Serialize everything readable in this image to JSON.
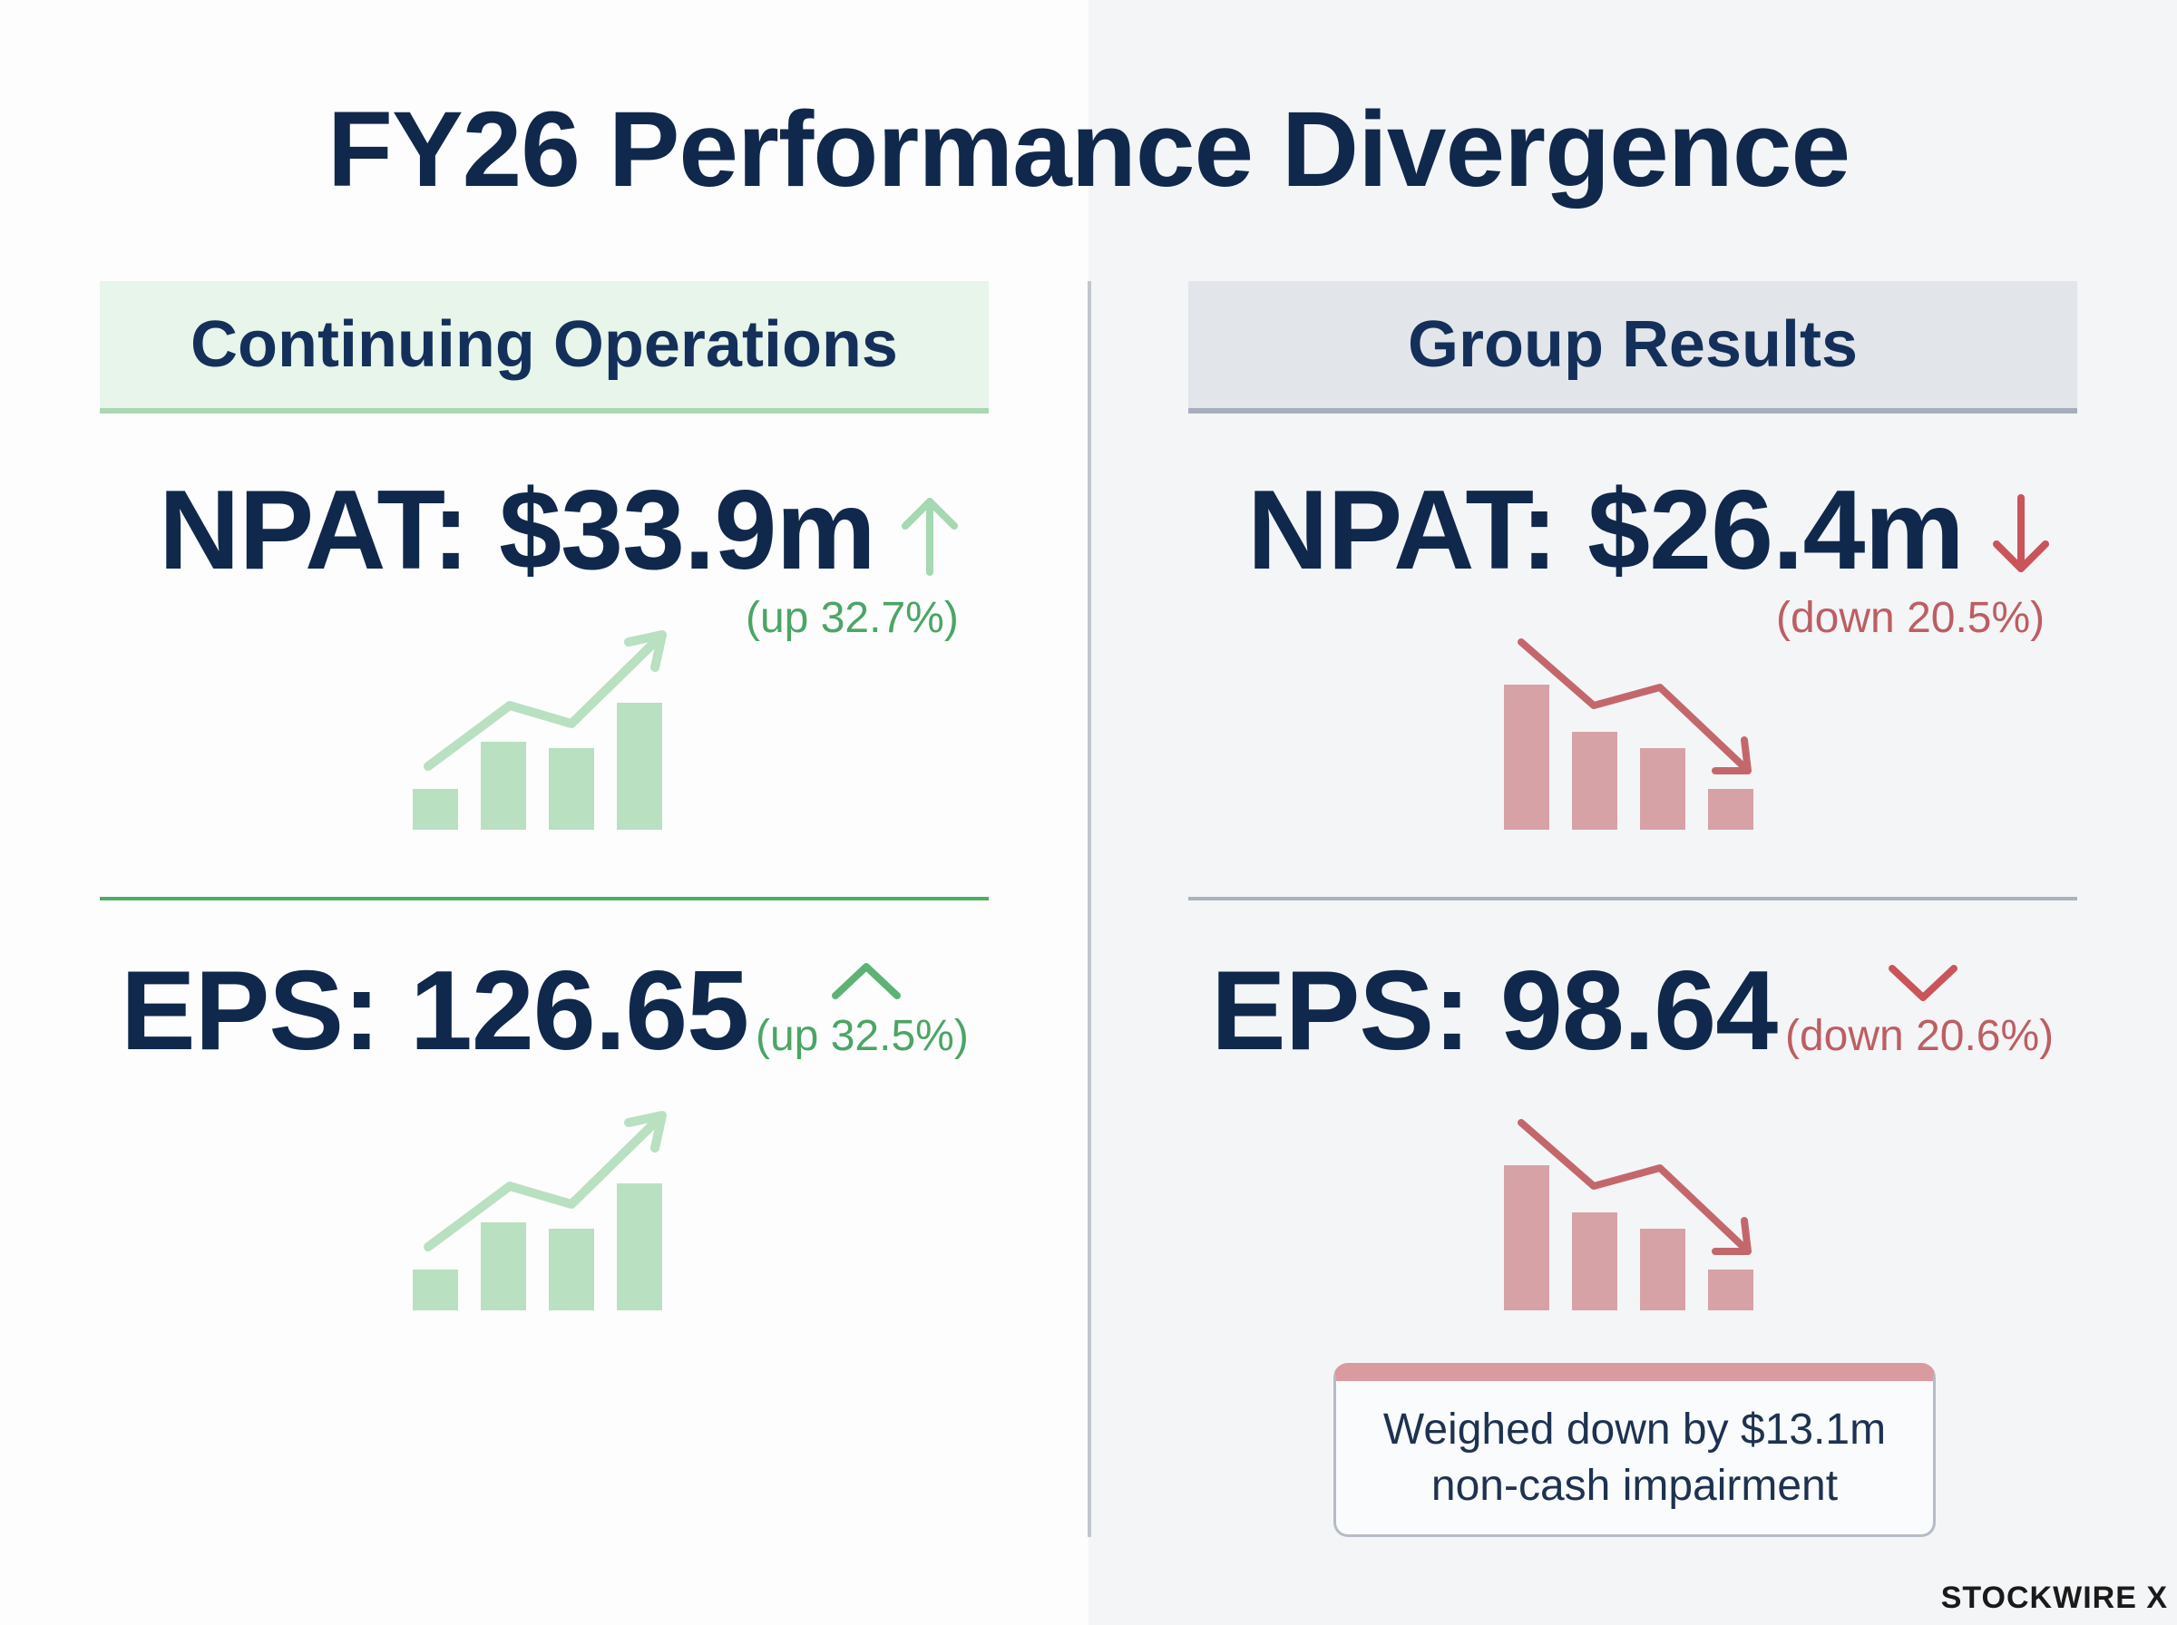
{
  "title": "FY26 Performance Divergence",
  "continuing": {
    "header": "Continuing Operations",
    "npat": {
      "label": "NPAT: $33.9m",
      "change": "(up 32.7%)",
      "direction": "up"
    },
    "eps": {
      "label": "EPS: 126.65",
      "change": "(up 32.5%)",
      "direction": "up"
    },
    "accent_color": "#4aa664"
  },
  "group": {
    "header": "Group Results",
    "npat": {
      "label": "NPAT: $26.4m",
      "change": "(down 20.5%)",
      "direction": "down"
    },
    "eps": {
      "label": "EPS: 98.64",
      "change": "(down 20.6%)",
      "direction": "down"
    },
    "note": {
      "line1": "Weighed down by $13.1m",
      "line2": "non-cash impairment"
    },
    "accent_color": "#bd5e63"
  },
  "brand": "STOCKWIRE X"
}
